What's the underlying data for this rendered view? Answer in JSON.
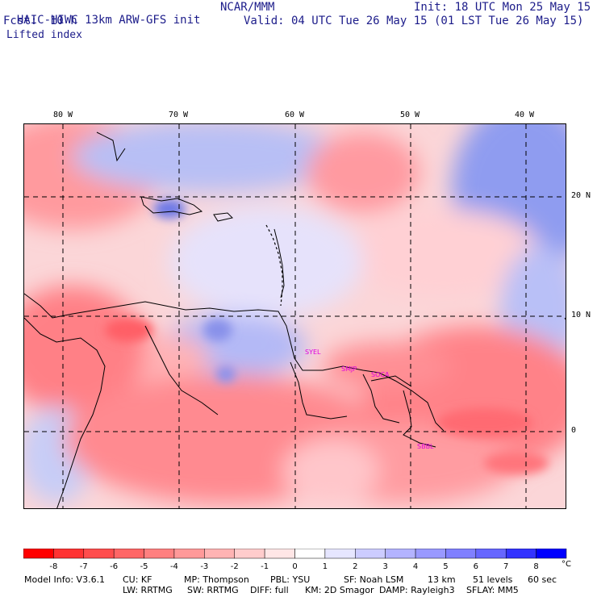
{
  "header": {
    "model_title": "HAIC-HIWC 13km ARW-GFS init",
    "org": "NCAR/MMM",
    "init": "Init: 18 UTC Mon 25 May 15",
    "fcst_label": "Fcst:",
    "fcst_value": "10 h",
    "valid": "Valid: 04 UTC Tue 26 May 15 (01 LST Tue 26 May 15)",
    "field": "Lifted index"
  },
  "map": {
    "lon_ticks": [
      "80 W",
      "70 W",
      "60 W",
      "50 W",
      "40 W"
    ],
    "lat_ticks": [
      "20 N",
      "10 N",
      "0"
    ],
    "stations": [
      "SYEL",
      "SMJP",
      "SOCA",
      "SBBL"
    ],
    "colors": {
      "negative": "#ff2a2a",
      "neutral": "#ffffff",
      "positive": "#2a2aff"
    }
  },
  "legend": {
    "labels": [
      "-8",
      "-7",
      "-6",
      "-5",
      "-4",
      "-3",
      "-2",
      "-1",
      "0",
      "1",
      "2",
      "3",
      "4",
      "5",
      "6",
      "7",
      "8"
    ],
    "unit": "°C",
    "colors": [
      "#ff0000",
      "#ff3333",
      "#ff4d4d",
      "#ff6666",
      "#ff8080",
      "#ff9999",
      "#ffb3b3",
      "#ffcccc",
      "#ffe6e6",
      "#ffffff",
      "#e6e6ff",
      "#ccccff",
      "#b3b3ff",
      "#9999ff",
      "#8080ff",
      "#6666ff",
      "#3333ff",
      "#0000ff"
    ]
  },
  "model_info": {
    "line1": [
      "Model Info: V3.6.1",
      "CU: KF",
      "MP: Thompson",
      "PBL: YSU",
      "SF: Noah LSM",
      "13 km",
      "51 levels",
      "60 sec"
    ],
    "line2": [
      "LW: RRTMG",
      "SW: RRTMG",
      "DIFF: full",
      "KM: 2D Smagor",
      "DAMP: Rayleigh3",
      "SFLAY: MM5"
    ]
  }
}
